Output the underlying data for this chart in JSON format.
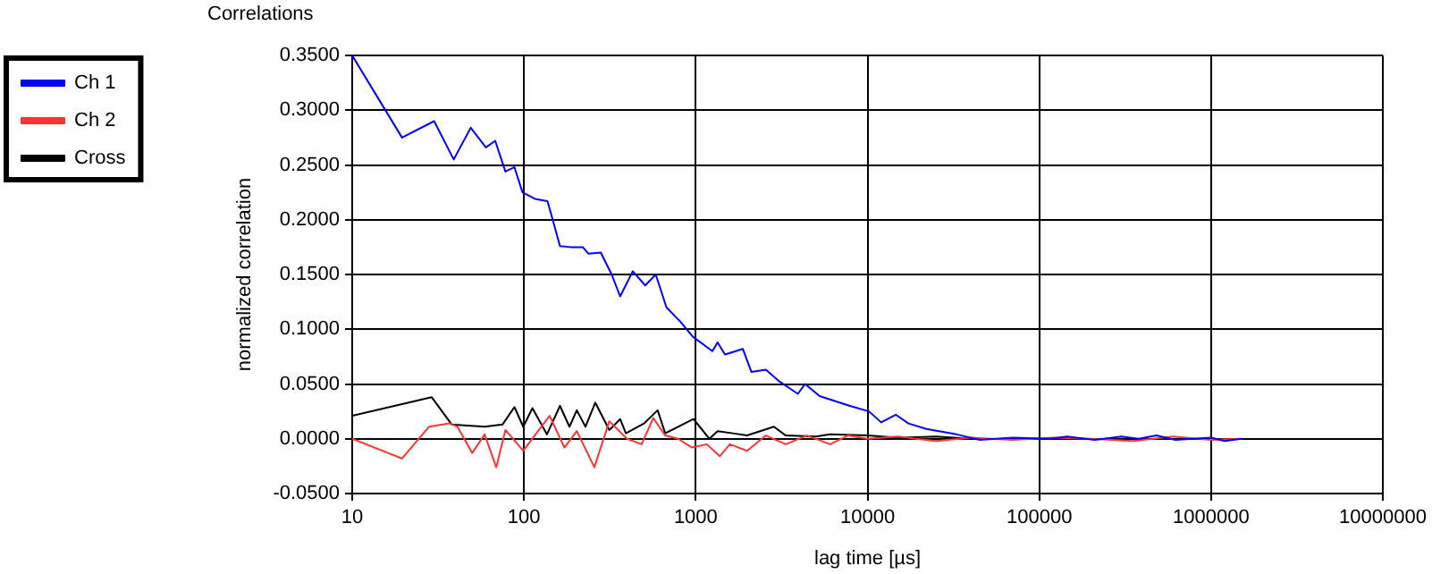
{
  "chart_data": {
    "type": "line",
    "title": "Correlations",
    "xlabel": "lag time [µs]",
    "ylabel": "normalized correlation",
    "log": "x",
    "grid": true,
    "legend": "top left",
    "marker": "none",
    "line_style": "solid",
    "xlim": [
      10,
      10000000
    ],
    "xticks": [
      10,
      100,
      1000,
      10000,
      100000,
      1000000,
      10000000
    ],
    "ylim": [
      -0.05,
      0.35
    ],
    "yticks": [
      {
        "value": -0.05,
        "label": "-0.0500"
      },
      {
        "value": 0,
        "label": "0.0000"
      },
      {
        "value": 0.05,
        "label": "0.0500"
      },
      {
        "value": 0.1,
        "label": "0.1000"
      },
      {
        "value": 0.15,
        "label": "0.1500"
      },
      {
        "value": 0.2,
        "label": "0.2000"
      },
      {
        "value": 0.25,
        "label": "0.2500"
      },
      {
        "value": 0.3,
        "label": "0.3000"
      },
      {
        "value": 0.35,
        "label": "0.3500"
      }
    ],
    "series": [
      {
        "name": "Ch 1",
        "color": "#0000ff",
        "x": [
          10,
          19.5,
          30,
          39,
          49,
          60,
          68,
          78,
          88,
          98,
          116,
          137,
          147,
          162,
          187,
          220,
          237,
          280,
          324,
          363,
          430,
          508,
          585,
          675,
          812,
          965,
          1250,
          1340,
          1480,
          1880,
          2110,
          2560,
          3030,
          3930,
          4330,
          5260,
          7900,
          10200,
          12000,
          14600,
          17300,
          22000,
          33000,
          45000,
          70000,
          115000,
          145000,
          210000,
          300000,
          380000,
          480000,
          620000,
          1000000,
          1200000,
          1500000
        ],
        "values": [
          0.35,
          0.275,
          0.29,
          0.255,
          0.284,
          0.266,
          0.272,
          0.244,
          0.248,
          0.225,
          0.219,
          0.217,
          0.2,
          0.176,
          0.175,
          0.175,
          0.169,
          0.17,
          0.15,
          0.13,
          0.153,
          0.14,
          0.15,
          0.12,
          0.107,
          0.093,
          0.08,
          0.088,
          0.077,
          0.082,
          0.061,
          0.063,
          0.053,
          0.041,
          0.05,
          0.039,
          0.03,
          0.025,
          0.015,
          0.022,
          0.014,
          0.009,
          0.004,
          -0.001,
          0.001,
          0,
          0.002,
          -0.001,
          0.002,
          0,
          0.003,
          -0.001,
          0.001,
          -0.002,
          0
        ]
      },
      {
        "name": "Ch 2",
        "color": "#ff3333",
        "x": [
          10,
          19.5,
          28,
          37,
          41,
          50,
          59,
          69,
          78,
          99,
          141,
          172,
          203,
          257,
          314,
          398,
          484,
          566,
          664,
          790,
          950,
          1160,
          1380,
          1580,
          1990,
          2560,
          3340,
          4440,
          6050,
          7700,
          10000,
          15000,
          25000,
          40000,
          70000,
          120000,
          200000,
          350000,
          600000,
          1000000,
          1500000
        ],
        "values": [
          0,
          -0.018,
          0.011,
          0.014,
          0.011,
          -0.013,
          0.004,
          -0.026,
          0.008,
          -0.011,
          0.021,
          -0.008,
          0.007,
          -0.026,
          0.016,
          0,
          -0.005,
          0.019,
          0.003,
          0,
          -0.008,
          -0.005,
          -0.016,
          -0.005,
          -0.011,
          0.003,
          -0.005,
          0.003,
          -0.005,
          0.003,
          0,
          0.002,
          -0.002,
          0.001,
          -0.001,
          0.001,
          0,
          -0.002,
          0.002,
          -0.001,
          0
        ]
      },
      {
        "name": "Cross",
        "color": "#000000",
        "x": [
          10,
          29,
          38,
          59,
          75,
          88,
          99,
          112,
          136,
          162,
          184,
          203,
          228,
          260,
          314,
          363,
          392,
          500,
          600,
          664,
          970,
          1200,
          1340,
          1640,
          1990,
          2850,
          3340,
          5000,
          6050,
          10000,
          15000,
          25000,
          40000
        ],
        "values": [
          0.021,
          0.038,
          0.013,
          0.011,
          0.013,
          0.029,
          0.011,
          0.028,
          0.004,
          0.03,
          0.011,
          0.026,
          0.011,
          0.033,
          0.008,
          0.018,
          0.005,
          0.014,
          0.026,
          0.005,
          0.018,
          0,
          0.007,
          0.005,
          0.003,
          0.011,
          0.003,
          0.002,
          0.004,
          0.003,
          0.001,
          0.002,
          0
        ]
      }
    ]
  }
}
